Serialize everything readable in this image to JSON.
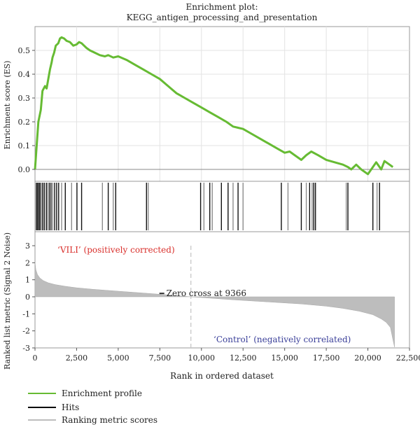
{
  "chart_data": [
    {
      "type": "line",
      "title": "Enrichment plot:",
      "subtitle": "KEGG_antigen_processing_and_presentation",
      "ylabel": "Enrichment score (ES)",
      "xlim": [
        0,
        22500
      ],
      "ylim": [
        -0.05,
        0.6
      ],
      "y_ticks": [
        "0.0",
        "0.1",
        "0.2",
        "0.3",
        "0.4",
        "0.5"
      ],
      "y_tick_values": [
        0.0,
        0.1,
        0.2,
        0.3,
        0.4,
        0.5
      ],
      "grid": true,
      "series": [
        {
          "name": "Enrichment profile",
          "color": "#66bb33",
          "x": [
            0,
            100,
            200,
            350,
            450,
            600,
            700,
            800,
            900,
            1000,
            1050,
            1150,
            1250,
            1400,
            1500,
            1600,
            1750,
            1900,
            2100,
            2300,
            2500,
            2650,
            2800,
            2950,
            3100,
            3300,
            3600,
            3900,
            4200,
            4400,
            4700,
            5000,
            5500,
            6000,
            6500,
            7000,
            7500,
            8000,
            8500,
            9000,
            9500,
            10000,
            10500,
            11000,
            11500,
            11900,
            12200,
            12500,
            13000,
            13500,
            14000,
            14500,
            15000,
            15300,
            15600,
            16000,
            16300,
            16600,
            17000,
            17500,
            18000,
            18500,
            18800,
            19000,
            19300,
            19600,
            20000,
            20300,
            20500,
            20800,
            21000,
            21300,
            21500
          ],
          "values": [
            0.0,
            0.1,
            0.2,
            0.25,
            0.33,
            0.35,
            0.34,
            0.38,
            0.42,
            0.45,
            0.47,
            0.49,
            0.52,
            0.53,
            0.55,
            0.555,
            0.55,
            0.54,
            0.535,
            0.52,
            0.525,
            0.535,
            0.53,
            0.52,
            0.51,
            0.5,
            0.49,
            0.48,
            0.475,
            0.48,
            0.47,
            0.475,
            0.46,
            0.44,
            0.42,
            0.4,
            0.38,
            0.35,
            0.32,
            0.3,
            0.28,
            0.26,
            0.24,
            0.22,
            0.2,
            0.18,
            0.175,
            0.17,
            0.15,
            0.13,
            0.11,
            0.09,
            0.07,
            0.075,
            0.06,
            0.04,
            0.06,
            0.075,
            0.06,
            0.04,
            0.03,
            0.02,
            0.01,
            0.0,
            0.02,
            0.0,
            -0.02,
            0.01,
            0.03,
            0.0,
            0.035,
            0.02,
            0.01
          ]
        }
      ]
    },
    {
      "type": "barcode",
      "xlim": [
        0,
        22500
      ],
      "series": [
        {
          "name": "Hits",
          "color": "#000000",
          "x": [
            80,
            150,
            230,
            300,
            380,
            460,
            560,
            680,
            760,
            860,
            960,
            1060,
            1180,
            1300,
            1420,
            1600,
            1820,
            2200,
            2520,
            2800,
            4050,
            4400,
            4700,
            4850,
            6700,
            6800,
            9950,
            10150,
            10500,
            10650,
            11200,
            11600,
            11900,
            12200,
            12500,
            14800,
            15200,
            16000,
            16300,
            16500,
            16650,
            16750,
            16850,
            18700,
            18800,
            20300,
            20550,
            20700
          ],
          "shade": [
            "d",
            "d",
            "d",
            "d",
            "g",
            "d",
            "d",
            "d",
            "g",
            "d",
            "d",
            "g",
            "d",
            "d",
            "d",
            "g",
            "d",
            "g",
            "d",
            "d",
            "g",
            "d",
            "g",
            "d",
            "d",
            "g",
            "d",
            "g",
            "d",
            "g",
            "d",
            "d",
            "g",
            "d",
            "g",
            "d",
            "g",
            "d",
            "g",
            "d",
            "g",
            "d",
            "d",
            "g",
            "d",
            "d",
            "g",
            "d"
          ]
        }
      ]
    },
    {
      "type": "heatmap",
      "label": "‘VILI’ (positively corrected)",
      "xlim": [
        0,
        21600
      ],
      "segments": [
        {
          "x_end": 3400,
          "color": "#e53539"
        },
        {
          "x_end": 6800,
          "color": "#ee7780"
        },
        {
          "x_end": 9300,
          "color": "#f2b9d6"
        },
        {
          "x_end": 11800,
          "color": "#d9d7ea"
        },
        {
          "x_end": 14200,
          "color": "#c1bde2"
        },
        {
          "x_end": 16200,
          "color": "#6b6fc7"
        },
        {
          "x_end": 21600,
          "color": "#3d3f9e"
        }
      ]
    },
    {
      "type": "area",
      "ylabel": "Ranked list metric (Signal 2 Noise)",
      "xlabel": "Rank in ordered dataset",
      "xlim": [
        0,
        22500
      ],
      "ylim": [
        -3,
        3
      ],
      "x_ticks": [
        "0",
        "2,500",
        "5,000",
        "7,500",
        "10,000",
        "12,500",
        "15,000",
        "17,500",
        "20,000",
        "22,500"
      ],
      "x_tick_values": [
        0,
        2500,
        5000,
        7500,
        10000,
        12500,
        15000,
        17500,
        20000,
        22500
      ],
      "y_ticks": [
        "3",
        "2",
        "1",
        "0",
        "-1",
        "-2",
        "-3"
      ],
      "y_tick_values": [
        3,
        2,
        1,
        0,
        -1,
        -2,
        -3
      ],
      "zero_cross_label": "Zero cross at 9366",
      "zero_cross_x": 9366,
      "negative_label": "‘Control’ (negatively correlated)",
      "series": [
        {
          "name": "Ranking metric scores",
          "color": "#bdbdbd",
          "x": [
            0,
            50,
            150,
            300,
            500,
            800,
            1200,
            1800,
            2500,
            3500,
            5000,
            6500,
            8000,
            9366,
            10500,
            12000,
            14000,
            16000,
            17500,
            18500,
            19500,
            20300,
            20800,
            21100,
            21350,
            21500,
            21600
          ],
          "values": [
            2.05,
            1.6,
            1.3,
            1.1,
            0.95,
            0.82,
            0.72,
            0.62,
            0.53,
            0.44,
            0.33,
            0.22,
            0.11,
            0.0,
            -0.08,
            -0.18,
            -0.3,
            -0.42,
            -0.55,
            -0.68,
            -0.85,
            -1.05,
            -1.3,
            -1.5,
            -1.8,
            -2.5,
            -2.95
          ]
        }
      ]
    }
  ]
}
